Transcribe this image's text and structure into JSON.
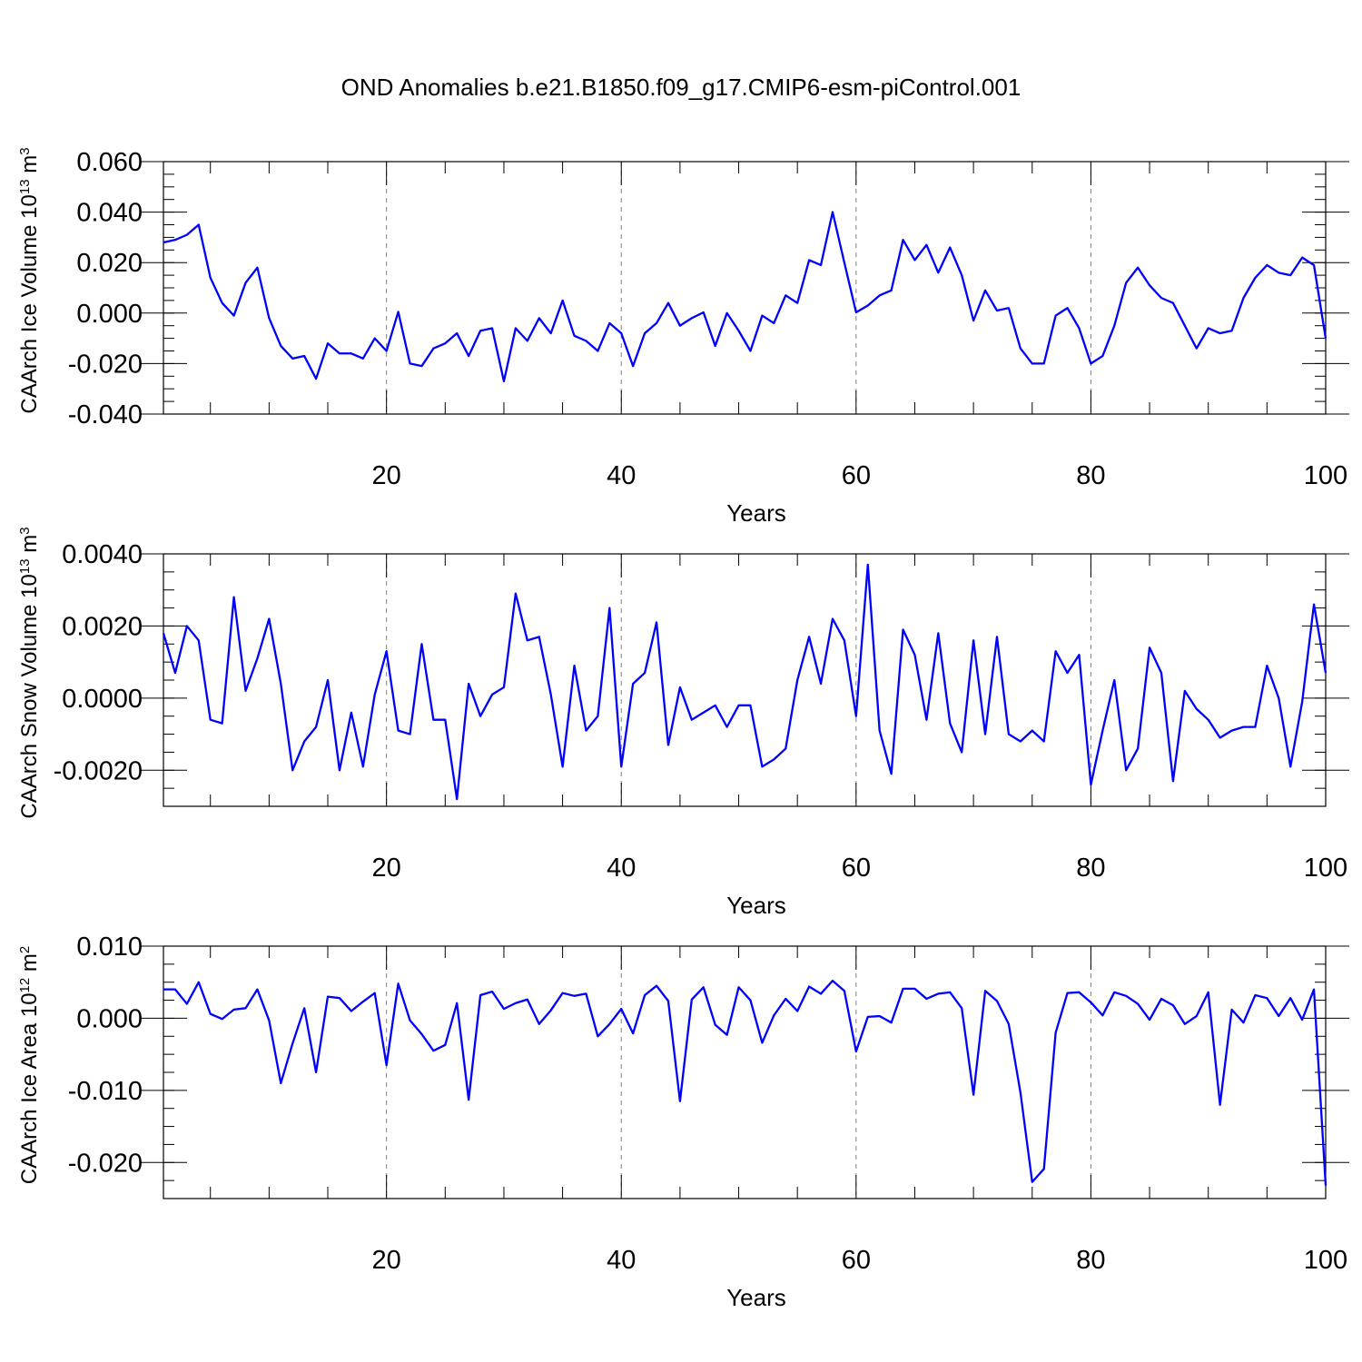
{
  "title": "OND Anomalies b.e21.B1850.f09_g17.CMIP6-esm-piControl.001",
  "chart_data": [
    {
      "type": "line",
      "ylabel": "CAArch Ice Volume 10",
      "ylabel_exp": "13",
      "ylabel_unit": " m",
      "ylabel_unit_exp": "3",
      "xlabel": "Years",
      "xlim": [
        1,
        100
      ],
      "ylim": [
        -0.04,
        0.06
      ],
      "xticks": [
        20,
        40,
        60,
        80,
        100
      ],
      "xtick_labels": [
        "20",
        "40",
        "60",
        "80",
        "100"
      ],
      "yticks": [
        0.06,
        0.04,
        0.02,
        0.0,
        -0.02,
        -0.04
      ],
      "ytick_labels": [
        "0.060",
        "0.040",
        "0.020",
        "0.000",
        "-0.020",
        "-0.040"
      ],
      "grid": "vertical dashed at x ticks",
      "color": "#0000ff",
      "x_start": 1,
      "values": [
        0.028,
        0.029,
        0.031,
        0.035,
        0.014,
        0.004,
        -0.001,
        0.012,
        0.018,
        -0.002,
        -0.013,
        -0.018,
        -0.017,
        -0.026,
        -0.012,
        -0.016,
        -0.016,
        -0.018,
        -0.01,
        -0.015,
        0.0005,
        -0.02,
        -0.021,
        -0.014,
        -0.012,
        -0.008,
        -0.017,
        -0.007,
        -0.006,
        -0.027,
        -0.006,
        -0.011,
        -0.002,
        -0.008,
        0.005,
        -0.009,
        -0.011,
        -0.015,
        -0.004,
        -0.008,
        -0.021,
        -0.008,
        -0.004,
        0.004,
        -0.005,
        -0.002,
        0.0003,
        -0.013,
        0.0,
        -0.007,
        -0.015,
        -0.001,
        -0.004,
        0.007,
        0.004,
        0.021,
        0.019,
        0.04,
        0.02,
        0.0003,
        0.003,
        0.007,
        0.009,
        0.029,
        0.021,
        0.027,
        0.016,
        0.026,
        0.015,
        -0.003,
        0.009,
        0.001,
        0.002,
        -0.014,
        -0.02,
        -0.02,
        -0.001,
        0.002,
        -0.006,
        -0.02,
        -0.017,
        -0.005,
        0.012,
        0.018,
        0.011,
        0.006,
        0.004,
        -0.005,
        -0.014,
        -0.006,
        -0.008,
        -0.007,
        0.006,
        0.014,
        0.019,
        0.016,
        0.015,
        0.022,
        0.019,
        -0.01
      ]
    },
    {
      "type": "line",
      "ylabel": "CAArch Snow Volume 10",
      "ylabel_exp": "13",
      "ylabel_unit": " m",
      "ylabel_unit_exp": "3",
      "xlabel": "Years",
      "xlim": [
        1,
        100
      ],
      "ylim": [
        -0.003,
        0.004
      ],
      "xticks": [
        20,
        40,
        60,
        80,
        100
      ],
      "xtick_labels": [
        "20",
        "40",
        "60",
        "80",
        "100"
      ],
      "yticks": [
        0.004,
        0.002,
        0.0,
        -0.002
      ],
      "ytick_labels": [
        "0.0040",
        "0.0020",
        "0.0000",
        "-0.0020"
      ],
      "grid": "vertical dashed at x ticks",
      "color": "#0000ff",
      "x_start": 1,
      "values": [
        0.0018,
        0.0007,
        0.002,
        0.0016,
        -0.0006,
        -0.0007,
        0.0028,
        0.0002,
        0.0011,
        0.0022,
        0.0004,
        -0.002,
        -0.0012,
        -0.0008,
        0.0005,
        -0.002,
        -0.0004,
        -0.0019,
        0.0001,
        0.0013,
        -0.0009,
        -0.001,
        0.0015,
        -0.0006,
        -0.0006,
        -0.0028,
        0.0004,
        -0.0005,
        0.0001,
        0.0003,
        0.0029,
        0.0016,
        0.0017,
        0.0001,
        -0.0019,
        0.0009,
        -0.0009,
        -0.0005,
        0.0025,
        -0.0019,
        0.0004,
        0.0007,
        0.0021,
        -0.0013,
        0.0003,
        -0.0006,
        -0.0004,
        -0.0002,
        -0.0008,
        -0.0002,
        -0.0002,
        -0.0019,
        -0.0017,
        -0.0014,
        0.0005,
        0.0017,
        0.0004,
        0.0022,
        0.0016,
        -0.0005,
        0.0037,
        -0.0009,
        -0.0021,
        0.0019,
        0.0012,
        -0.0006,
        0.0018,
        -0.0007,
        -0.0015,
        0.0016,
        -0.001,
        0.0017,
        -0.001,
        -0.0012,
        -0.0009,
        -0.0012,
        0.0013,
        0.0007,
        0.0012,
        -0.0024,
        -0.0009,
        0.0005,
        -0.002,
        -0.0014,
        0.0014,
        0.0007,
        -0.0023,
        0.0002,
        -0.0003,
        -0.0006,
        -0.0011,
        -0.0009,
        -0.0008,
        -0.0008,
        0.0009,
        0.0,
        -0.0019,
        -0.0001,
        0.0026,
        0.0007
      ]
    },
    {
      "type": "line",
      "ylabel": "CAArch Ice Area 10",
      "ylabel_exp": "12",
      "ylabel_unit": " m",
      "ylabel_unit_exp": "2",
      "xlabel": "Years",
      "xlim": [
        1,
        100
      ],
      "ylim": [
        -0.025,
        0.01
      ],
      "xticks": [
        20,
        40,
        60,
        80,
        100
      ],
      "xtick_labels": [
        "20",
        "40",
        "60",
        "80",
        "100"
      ],
      "yticks": [
        0.01,
        0.0,
        -0.01,
        -0.02
      ],
      "ytick_labels": [
        "0.010",
        "0.000",
        "-0.010",
        "-0.020"
      ],
      "grid": "vertical dashed at x ticks",
      "color": "#0000ff",
      "x_start": 1,
      "values": [
        0.004,
        0.004,
        0.002,
        0.005,
        0.0006,
        -0.0001,
        0.0012,
        0.0014,
        0.004,
        -0.0003,
        -0.009,
        -0.0035,
        0.0014,
        -0.0075,
        0.003,
        0.0028,
        0.001,
        0.0023,
        0.0035,
        -0.0065,
        0.0048,
        -0.0003,
        -0.0022,
        -0.0045,
        -0.0037,
        0.0021,
        -0.0113,
        0.0032,
        0.0037,
        0.0013,
        0.0021,
        0.0026,
        -0.0008,
        0.0011,
        0.0035,
        0.0031,
        0.0034,
        -0.0025,
        -0.0008,
        0.0013,
        -0.0021,
        0.0032,
        0.0045,
        0.0024,
        -0.0115,
        0.0026,
        0.0043,
        -0.0009,
        -0.0023,
        0.0043,
        0.0025,
        -0.0034,
        0.0004,
        0.0027,
        0.001,
        0.0044,
        0.0034,
        0.0052,
        0.0038,
        -0.0046,
        0.0002,
        0.0003,
        -0.0006,
        0.0041,
        0.0041,
        0.0027,
        0.0034,
        0.0036,
        0.0014,
        -0.0106,
        0.0038,
        0.0024,
        -0.0008,
        -0.0103,
        -0.0227,
        -0.0209,
        -0.002,
        0.0035,
        0.0036,
        0.0022,
        0.0004,
        0.0036,
        0.0031,
        0.002,
        -0.0002,
        0.0027,
        0.0018,
        -0.0008,
        0.0003,
        0.0036,
        -0.012,
        0.0012,
        -0.0006,
        0.0032,
        0.0028,
        0.0003,
        0.0028,
        -0.0002,
        0.004,
        -0.0232
      ]
    }
  ]
}
